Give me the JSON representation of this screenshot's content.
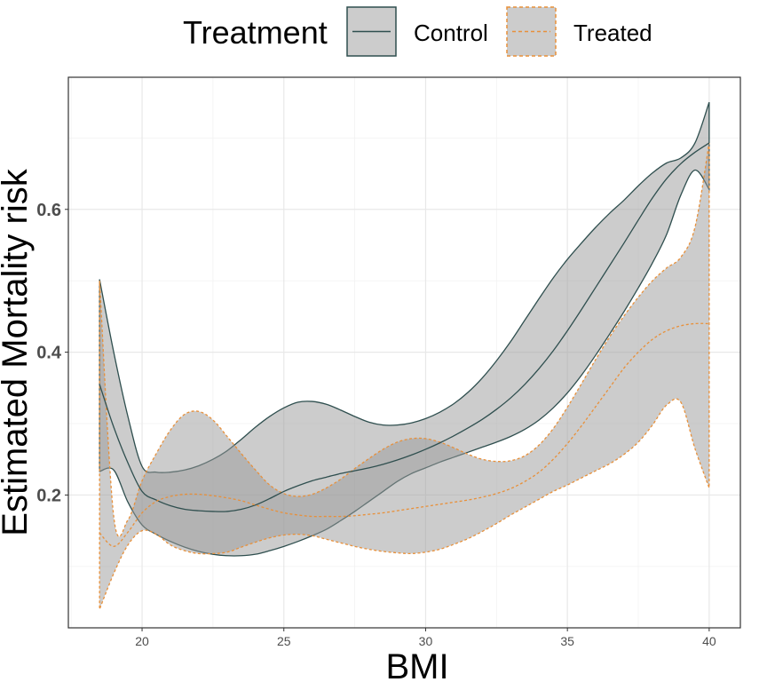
{
  "chart_data": {
    "type": "area",
    "xlabel": "BMI",
    "ylabel": "Estimated Mortality risk",
    "xlim": [
      17.4,
      41.1
    ],
    "ylim": [
      0.014,
      0.785
    ],
    "x_ticks": [
      20,
      25,
      30,
      35,
      40
    ],
    "y_ticks": [
      0.2,
      0.4,
      0.6
    ],
    "x_tick_labels": [
      "20",
      "25",
      "30",
      "35",
      "40"
    ],
    "y_tick_labels": [
      "0.2",
      "0.4",
      "0.6"
    ],
    "grid": true,
    "legend": {
      "title": "Treatment",
      "position": "top"
    },
    "x": [
      18.5,
      19,
      19.5,
      20,
      20.5,
      21,
      21.5,
      22,
      22.5,
      23,
      23.5,
      24,
      24.5,
      25,
      25.5,
      26,
      26.5,
      27,
      27.5,
      28,
      28.5,
      29,
      29.5,
      30,
      30.5,
      31,
      31.5,
      32,
      32.5,
      33,
      33.5,
      34,
      34.5,
      35,
      35.5,
      36,
      36.5,
      37,
      37.5,
      38,
      38.5,
      39,
      39.5,
      40
    ],
    "series": [
      {
        "name": "Control",
        "line_color": "#2f4f4f",
        "line_style": "solid",
        "values": [
          0.355,
          0.295,
          0.245,
          0.205,
          0.193,
          0.185,
          0.18,
          0.178,
          0.177,
          0.177,
          0.18,
          0.186,
          0.195,
          0.205,
          0.213,
          0.22,
          0.225,
          0.23,
          0.234,
          0.238,
          0.243,
          0.249,
          0.256,
          0.264,
          0.273,
          0.283,
          0.294,
          0.306,
          0.32,
          0.336,
          0.355,
          0.377,
          0.402,
          0.43,
          0.46,
          0.491,
          0.522,
          0.553,
          0.585,
          0.616,
          0.643,
          0.664,
          0.68,
          0.693
        ],
        "lower": [
          0.233,
          0.235,
          0.19,
          0.158,
          0.145,
          0.135,
          0.127,
          0.121,
          0.117,
          0.115,
          0.115,
          0.117,
          0.122,
          0.128,
          0.135,
          0.143,
          0.152,
          0.164,
          0.177,
          0.191,
          0.205,
          0.219,
          0.23,
          0.238,
          0.246,
          0.253,
          0.26,
          0.267,
          0.274,
          0.282,
          0.292,
          0.305,
          0.322,
          0.343,
          0.368,
          0.396,
          0.426,
          0.457,
          0.49,
          0.525,
          0.565,
          0.62,
          0.655,
          0.628
        ],
        "upper": [
          0.502,
          0.4,
          0.31,
          0.24,
          0.232,
          0.232,
          0.235,
          0.241,
          0.25,
          0.262,
          0.278,
          0.295,
          0.31,
          0.322,
          0.33,
          0.331,
          0.327,
          0.319,
          0.31,
          0.302,
          0.298,
          0.298,
          0.301,
          0.307,
          0.316,
          0.328,
          0.344,
          0.364,
          0.388,
          0.415,
          0.445,
          0.475,
          0.504,
          0.53,
          0.553,
          0.575,
          0.595,
          0.613,
          0.633,
          0.651,
          0.665,
          0.672,
          0.693,
          0.75
        ]
      },
      {
        "name": "Treated",
        "line_color": "#e8903a",
        "line_style": "dashed",
        "values": [
          0.147,
          0.128,
          0.148,
          0.175,
          0.191,
          0.198,
          0.201,
          0.201,
          0.199,
          0.196,
          0.192,
          0.186,
          0.18,
          0.175,
          0.172,
          0.17,
          0.17,
          0.17,
          0.171,
          0.173,
          0.175,
          0.178,
          0.181,
          0.184,
          0.187,
          0.19,
          0.193,
          0.197,
          0.202,
          0.209,
          0.219,
          0.232,
          0.25,
          0.272,
          0.297,
          0.324,
          0.351,
          0.378,
          0.4,
          0.418,
          0.43,
          0.437,
          0.44,
          0.44
        ],
        "lower": [
          0.04,
          0.09,
          0.13,
          0.15,
          0.145,
          0.13,
          0.122,
          0.118,
          0.118,
          0.12,
          0.127,
          0.134,
          0.14,
          0.144,
          0.145,
          0.143,
          0.138,
          0.133,
          0.128,
          0.124,
          0.121,
          0.119,
          0.118,
          0.12,
          0.124,
          0.131,
          0.139,
          0.149,
          0.16,
          0.172,
          0.183,
          0.194,
          0.205,
          0.214,
          0.224,
          0.234,
          0.244,
          0.257,
          0.274,
          0.298,
          0.326,
          0.33,
          0.265,
          0.21
        ],
        "upper": [
          0.5,
          0.17,
          0.165,
          0.22,
          0.258,
          0.291,
          0.313,
          0.317,
          0.305,
          0.282,
          0.258,
          0.235,
          0.214,
          0.202,
          0.198,
          0.201,
          0.21,
          0.222,
          0.237,
          0.251,
          0.264,
          0.274,
          0.279,
          0.279,
          0.274,
          0.266,
          0.257,
          0.25,
          0.247,
          0.248,
          0.255,
          0.27,
          0.293,
          0.323,
          0.356,
          0.39,
          0.422,
          0.451,
          0.477,
          0.5,
          0.518,
          0.533,
          0.575,
          0.693
        ]
      }
    ]
  }
}
